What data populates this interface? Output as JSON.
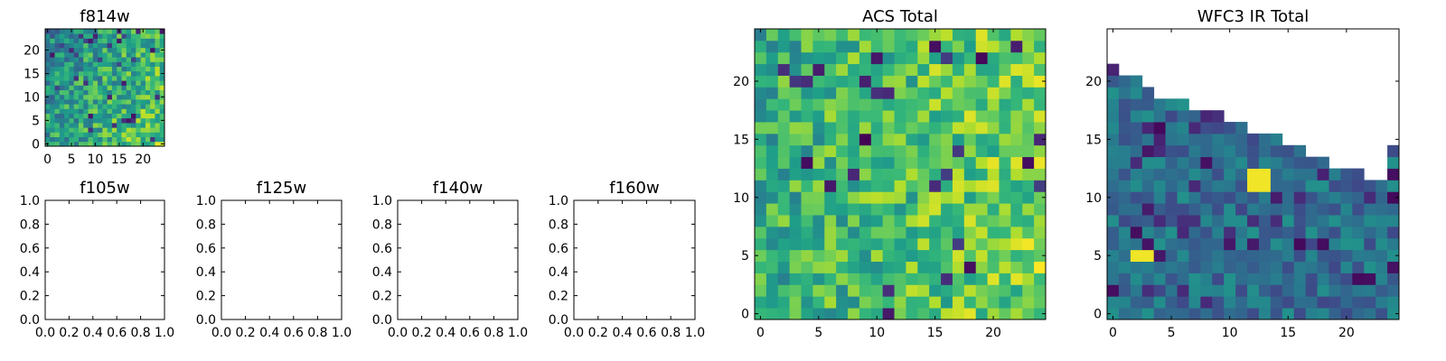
{
  "chart_data": [
    {
      "type": "heatmap",
      "title": "f814w",
      "colormap": "viridis",
      "grid": false,
      "xlim": [
        -0.5,
        24.5
      ],
      "ylim": [
        -0.5,
        24.5
      ],
      "xticks": [
        0,
        5,
        10,
        15,
        20
      ],
      "xtick_labels": [
        "0",
        "5",
        "10",
        "15",
        "20"
      ],
      "yticks": [
        0,
        5,
        10,
        15,
        20
      ],
      "ytick_labels": [
        "0",
        "5",
        "10",
        "15",
        "20"
      ],
      "grid_size": 25,
      "data_profile": "noisy full 25x25 image; mostly mid-green values, brighter (yellow) toward the lower right, a few dark outliers"
    },
    {
      "type": "empty",
      "title": "f105w",
      "xlim": [
        0,
        1
      ],
      "ylim": [
        0,
        1
      ],
      "xticks": [
        0,
        0.2,
        0.4,
        0.6,
        0.8,
        1.0
      ],
      "xtick_labels": [
        "0.0",
        "0.2",
        "0.4",
        "0.6",
        "0.8",
        "1.0"
      ],
      "yticks": [
        0,
        0.2,
        0.4,
        0.6,
        0.8,
        1.0
      ],
      "ytick_labels": [
        "0.0",
        "0.2",
        "0.4",
        "0.6",
        "0.8",
        "1.0"
      ]
    },
    {
      "type": "empty",
      "title": "f125w",
      "xlim": [
        0,
        1
      ],
      "ylim": [
        0,
        1
      ],
      "xticks": [
        0,
        0.2,
        0.4,
        0.6,
        0.8,
        1.0
      ],
      "xtick_labels": [
        "0.0",
        "0.2",
        "0.4",
        "0.6",
        "0.8",
        "1.0"
      ],
      "yticks": [
        0,
        0.2,
        0.4,
        0.6,
        0.8,
        1.0
      ],
      "ytick_labels": [
        "0.0",
        "0.2",
        "0.4",
        "0.6",
        "0.8",
        "1.0"
      ]
    },
    {
      "type": "empty",
      "title": "f140w",
      "xlim": [
        0,
        1
      ],
      "ylim": [
        0,
        1
      ],
      "xticks": [
        0,
        0.2,
        0.4,
        0.6,
        0.8,
        1.0
      ],
      "xtick_labels": [
        "0.0",
        "0.2",
        "0.4",
        "0.6",
        "0.8",
        "1.0"
      ],
      "yticks": [
        0,
        0.2,
        0.4,
        0.6,
        0.8,
        1.0
      ],
      "ytick_labels": [
        "0.0",
        "0.2",
        "0.4",
        "0.6",
        "0.8",
        "1.0"
      ]
    },
    {
      "type": "empty",
      "title": "f160w",
      "xlim": [
        0,
        1
      ],
      "ylim": [
        0,
        1
      ],
      "xticks": [
        0,
        0.2,
        0.4,
        0.6,
        0.8,
        1.0
      ],
      "xtick_labels": [
        "0.0",
        "0.2",
        "0.4",
        "0.6",
        "0.8",
        "1.0"
      ],
      "yticks": [
        0,
        0.2,
        0.4,
        0.6,
        0.8,
        1.0
      ],
      "ytick_labels": [
        "0.0",
        "0.2",
        "0.4",
        "0.6",
        "0.8",
        "1.0"
      ]
    },
    {
      "type": "heatmap",
      "title": "ACS Total",
      "colormap": "viridis",
      "grid": false,
      "xlim": [
        -0.5,
        24.5
      ],
      "ylim": [
        -0.5,
        24.5
      ],
      "xticks": [
        0,
        5,
        10,
        15,
        20
      ],
      "xtick_labels": [
        "0",
        "5",
        "10",
        "15",
        "20"
      ],
      "yticks": [
        0,
        5,
        10,
        15,
        20
      ],
      "ytick_labels": [
        "0",
        "5",
        "10",
        "15",
        "20"
      ],
      "grid_size": 25,
      "data_profile": "noisy full 25x25 image; mostly green, brighter toward the right edge, scattered dark purple pixels"
    },
    {
      "type": "heatmap",
      "title": "WFC3 IR Total",
      "colormap": "viridis",
      "grid": false,
      "xlim": [
        -0.5,
        24.5
      ],
      "ylim": [
        -0.5,
        24.5
      ],
      "xticks": [
        0,
        5,
        10,
        15,
        20
      ],
      "xtick_labels": [
        "0",
        "5",
        "10",
        "15",
        "20"
      ],
      "yticks": [
        0,
        5,
        10,
        15,
        20
      ],
      "ytick_labels": [
        "0",
        "5",
        "10",
        "15",
        "20"
      ],
      "grid_size": 25,
      "column_top_row": [
        21,
        20,
        20,
        19,
        18,
        18,
        18,
        17,
        17,
        17,
        16,
        16,
        15,
        15,
        15,
        14,
        14,
        13,
        13,
        12,
        12,
        12,
        11,
        11,
        14
      ],
      "bright_cells": [
        [
          3,
          5
        ],
        [
          2,
          5
        ],
        [
          12,
          12
        ],
        [
          13,
          12
        ],
        [
          12,
          11
        ],
        [
          13,
          11
        ]
      ],
      "data_profile": "staircase-shaped coverage (blank above each column's top row); mostly blue-teal values with dark purple outliers and a few yellow pixels"
    }
  ]
}
